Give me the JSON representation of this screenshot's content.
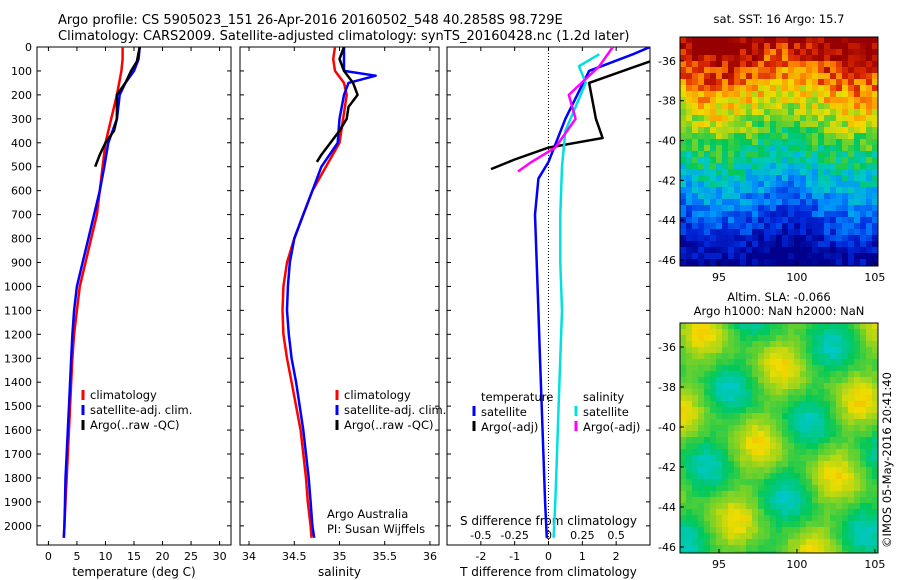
{
  "header": {
    "title_line1": "Argo profile: CS 5905023_151 26-Apr-2016 20160502_548 40.2858S 98.729E",
    "title_line2": "Climatology: CARS2009. Satellite-adjusted climatology: synTS_20160428.nc (1.2d later)"
  },
  "depth_ticks": [
    0,
    100,
    200,
    300,
    400,
    500,
    600,
    700,
    800,
    900,
    1000,
    1100,
    1200,
    1300,
    1400,
    1500,
    1600,
    1700,
    1800,
    1900,
    2000
  ],
  "colors": {
    "climatology": "#ff0000",
    "satellite": "#0000ff",
    "argo": "#000000",
    "sat_salinity": "#00e0e0",
    "argo_salinity": "#ff00ff"
  },
  "chart_data": [
    {
      "type": "line",
      "xlabel": "temperature (deg C)",
      "xticks": [
        0,
        5,
        10,
        15,
        20,
        25,
        30
      ],
      "xlim": [
        -2,
        32
      ],
      "ylim": [
        0,
        2080
      ],
      "y_reversed": true,
      "legend": [
        "climatology",
        "satellite-adj. clim.",
        "Argo(..raw -QC)"
      ],
      "legend_position": "lower-right",
      "series": [
        {
          "name": "climatology",
          "color": "#ff0000",
          "points": [
            [
              13,
              0
            ],
            [
              13,
              50
            ],
            [
              12.8,
              100
            ],
            [
              12,
              200
            ],
            [
              11,
              300
            ],
            [
              10,
              400
            ],
            [
              9.5,
              500
            ],
            [
              9,
              600
            ],
            [
              8.5,
              700
            ],
            [
              7.5,
              800
            ],
            [
              6.5,
              900
            ],
            [
              5.5,
              1000
            ],
            [
              5,
              1100
            ],
            [
              4.5,
              1200
            ],
            [
              4.2,
              1300
            ],
            [
              4,
              1400
            ],
            [
              3.8,
              1500
            ],
            [
              3.6,
              1600
            ],
            [
              3.4,
              1700
            ],
            [
              3.2,
              1800
            ],
            [
              3,
              1900
            ],
            [
              2.8,
              2000
            ],
            [
              2.7,
              2050
            ]
          ]
        },
        {
          "name": "satellite-adj. clim.",
          "color": "#0000ff",
          "points": [
            [
              16,
              0
            ],
            [
              15.8,
              50
            ],
            [
              15,
              100
            ],
            [
              13.5,
              150
            ],
            [
              12.5,
              200
            ],
            [
              12,
              300
            ],
            [
              10.5,
              400
            ],
            [
              9.8,
              500
            ],
            [
              9,
              600
            ],
            [
              8,
              700
            ],
            [
              7,
              800
            ],
            [
              6,
              900
            ],
            [
              5,
              1000
            ],
            [
              4.5,
              1100
            ],
            [
              4.2,
              1200
            ],
            [
              4,
              1300
            ],
            [
              3.8,
              1400
            ],
            [
              3.6,
              1500
            ],
            [
              3.4,
              1600
            ],
            [
              3.2,
              1700
            ],
            [
              3,
              1800
            ],
            [
              2.9,
              1900
            ],
            [
              2.8,
              2000
            ],
            [
              2.7,
              2050
            ]
          ]
        },
        {
          "name": "Argo(..raw -QC)",
          "color": "#000000",
          "points": [
            [
              16,
              0
            ],
            [
              15.5,
              60
            ],
            [
              14.5,
              100
            ],
            [
              13.5,
              150
            ],
            [
              12,
              200
            ],
            [
              12,
              250
            ],
            [
              12,
              300
            ],
            [
              11.5,
              350
            ],
            [
              10,
              400
            ],
            [
              9,
              450
            ],
            [
              8.2,
              500
            ]
          ]
        }
      ]
    },
    {
      "type": "line",
      "xlabel": "salinity",
      "xticks": [
        34,
        34.5,
        35,
        35.5,
        36
      ],
      "xlim": [
        33.9,
        36.1
      ],
      "ylim": [
        0,
        2080
      ],
      "y_reversed": true,
      "legend": [
        "climatology",
        "satellite-adj. clim.",
        "Argo(..raw -QC)"
      ],
      "legend_position": "lower-right",
      "annotation_lines": [
        "Argo Australia",
        "PI: Susan Wijffels"
      ],
      "series": [
        {
          "name": "climatology",
          "color": "#ff0000",
          "points": [
            [
              34.95,
              0
            ],
            [
              34.93,
              50
            ],
            [
              34.95,
              100
            ],
            [
              35.05,
              150
            ],
            [
              35.08,
              200
            ],
            [
              35,
              400
            ],
            [
              34.85,
              500
            ],
            [
              34.7,
              600
            ],
            [
              34.6,
              700
            ],
            [
              34.5,
              800
            ],
            [
              34.42,
              900
            ],
            [
              34.38,
              1000
            ],
            [
              34.37,
              1100
            ],
            [
              34.38,
              1200
            ],
            [
              34.42,
              1300
            ],
            [
              34.47,
              1400
            ],
            [
              34.52,
              1500
            ],
            [
              34.57,
              1600
            ],
            [
              34.6,
              1700
            ],
            [
              34.63,
              1800
            ],
            [
              34.65,
              1900
            ],
            [
              34.68,
              2000
            ],
            [
              34.69,
              2050
            ]
          ]
        },
        {
          "name": "satellite-adj. clim.",
          "color": "#0000ff",
          "points": [
            [
              35.05,
              0
            ],
            [
              35.05,
              100
            ],
            [
              35.4,
              120
            ],
            [
              35.1,
              150
            ],
            [
              35.05,
              200
            ],
            [
              35.0,
              300
            ],
            [
              34.98,
              400
            ],
            [
              34.8,
              500
            ],
            [
              34.7,
              600
            ],
            [
              34.6,
              700
            ],
            [
              34.5,
              800
            ],
            [
              34.45,
              900
            ],
            [
              34.43,
              1000
            ],
            [
              34.42,
              1100
            ],
            [
              34.44,
              1200
            ],
            [
              34.47,
              1300
            ],
            [
              34.52,
              1400
            ],
            [
              34.56,
              1500
            ],
            [
              34.6,
              1600
            ],
            [
              34.63,
              1700
            ],
            [
              34.66,
              1800
            ],
            [
              34.68,
              1900
            ],
            [
              34.7,
              2000
            ],
            [
              34.72,
              2050
            ]
          ]
        },
        {
          "name": "Argo(..raw -QC)",
          "color": "#000000",
          "points": [
            [
              35.05,
              0
            ],
            [
              35.0,
              50
            ],
            [
              35.05,
              100
            ],
            [
              35.15,
              150
            ],
            [
              35.2,
              200
            ],
            [
              35.1,
              250
            ],
            [
              35.08,
              300
            ],
            [
              35.0,
              350
            ],
            [
              34.9,
              400
            ],
            [
              34.8,
              450
            ],
            [
              34.75,
              480
            ]
          ]
        }
      ]
    },
    {
      "type": "line",
      "xlabel": "T difference from climatology",
      "x2label": "S difference from climatology",
      "xticks": [
        -2,
        -1,
        0,
        1,
        2
      ],
      "x2ticks": [
        {
          "value": -0.5,
          "label": "-0.5"
        },
        {
          "value": -0.25,
          "label": "-0.25"
        },
        {
          "value": 0,
          "label": "0"
        },
        {
          "value": 0.25,
          "label": "0.25"
        },
        {
          "value": 0.5,
          "label": "0.5"
        }
      ],
      "xlim": [
        -3,
        3
      ],
      "ylim": [
        0,
        2080
      ],
      "y_reversed": true,
      "legend_temperature": {
        "heading": "temperature",
        "items": [
          "satellite",
          "Argo(-adj)"
        ]
      },
      "legend_salinity": {
        "heading": "salinity",
        "items": [
          "satellite",
          "Argo(-adj)"
        ]
      },
      "series": [
        {
          "name": "satellite",
          "group": "temperature",
          "color": "#0000ff",
          "points": [
            [
              3,
              0
            ],
            [
              2.5,
              30
            ],
            [
              1.2,
              100
            ],
            [
              0.5,
              300
            ],
            [
              0,
              480
            ],
            [
              -0.3,
              550
            ],
            [
              -0.4,
              700
            ],
            [
              -0.35,
              900
            ],
            [
              -0.3,
              1100
            ],
            [
              -0.25,
              1300
            ],
            [
              -0.2,
              1500
            ],
            [
              -0.15,
              1700
            ],
            [
              -0.1,
              1900
            ],
            [
              -0.05,
              2050
            ]
          ]
        },
        {
          "name": "Argo(-adj)",
          "group": "temperature",
          "color": "#000000",
          "points": [
            [
              3,
              60
            ],
            [
              1.2,
              150
            ],
            [
              1.4,
              300
            ],
            [
              1.6,
              380
            ],
            [
              0.8,
              400
            ],
            [
              0,
              420
            ],
            [
              -1,
              470
            ],
            [
              -1.7,
              510
            ]
          ]
        },
        {
          "name": "satellite",
          "group": "salinity",
          "color": "#00e0e0",
          "points": [
            [
              1.5,
              30
            ],
            [
              0.9,
              80
            ],
            [
              1.1,
              150
            ],
            [
              0.8,
              250
            ],
            [
              0.5,
              350
            ],
            [
              0.4,
              500
            ],
            [
              0.35,
              700
            ],
            [
              0.35,
              900
            ],
            [
              0.4,
              1100
            ],
            [
              0.35,
              1300
            ],
            [
              0.3,
              1500
            ],
            [
              0.25,
              1700
            ],
            [
              0.2,
              1900
            ],
            [
              0.15,
              2050
            ]
          ]
        },
        {
          "name": "Argo(-adj)",
          "group": "salinity",
          "color": "#ff00ff",
          "points": [
            [
              1.9,
              0
            ],
            [
              1.5,
              80
            ],
            [
              0.6,
              200
            ],
            [
              0.8,
              300
            ],
            [
              0.2,
              420
            ],
            [
              -0.5,
              480
            ],
            [
              -0.9,
              520
            ]
          ]
        }
      ]
    },
    {
      "type": "heatmap",
      "title": "sat. SST: 16 Argo: 15.7",
      "xticks": [
        95,
        100,
        105
      ],
      "yticks": [
        -36,
        -38,
        -40,
        -42,
        -44,
        -46
      ],
      "xlim": [
        92.5,
        105.2
      ],
      "ylim": [
        -46.3,
        -34.8
      ]
    },
    {
      "type": "heatmap",
      "title_line1": "Altim. SLA: -0.066",
      "title_line2": "Argo h1000: NaN h2000: NaN",
      "xticks": [
        95,
        100,
        105
      ],
      "yticks": [
        -36,
        -38,
        -40,
        -42,
        -44,
        -46
      ],
      "xlim": [
        92.5,
        105.2
      ],
      "ylim": [
        -46.3,
        -34.8
      ]
    }
  ],
  "credit": "©IMOS 05-May-2016 20:41:40"
}
